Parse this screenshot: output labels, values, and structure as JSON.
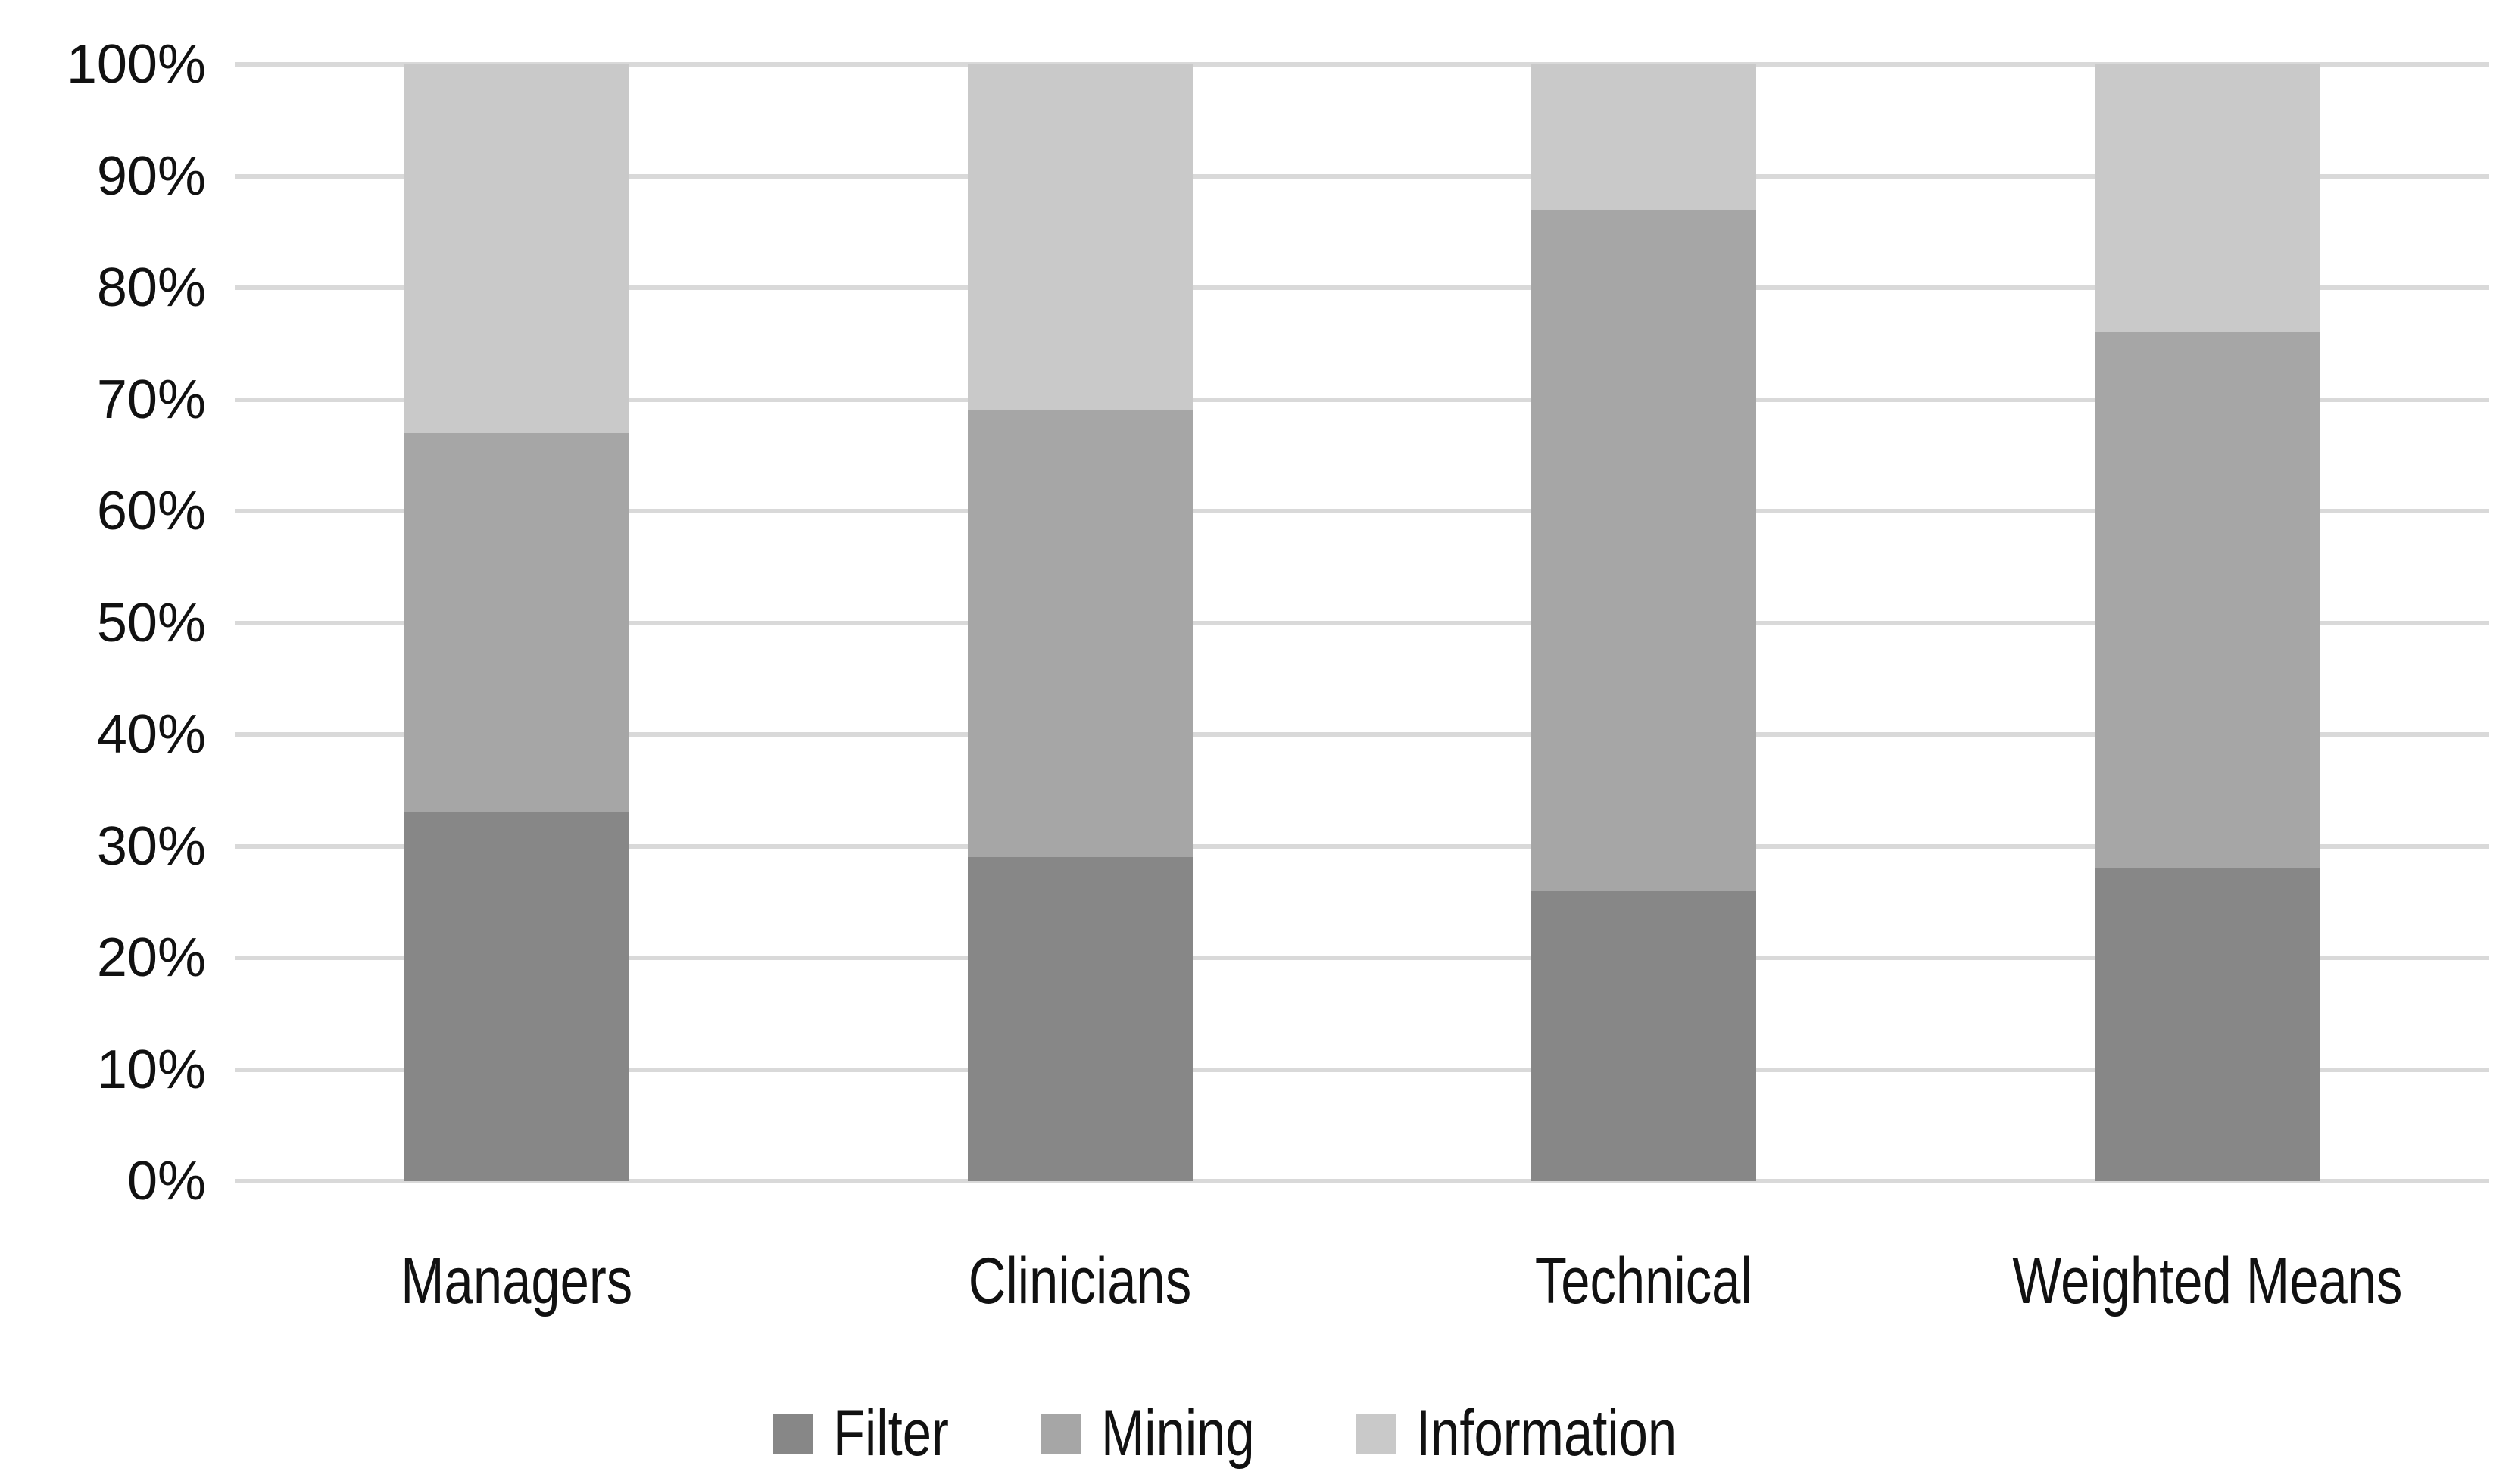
{
  "chart_data": {
    "type": "bar",
    "stacked": true,
    "percent_stacked": true,
    "title": "",
    "xlabel": "",
    "ylabel": "",
    "categories": [
      "Managers",
      "Clinicians",
      "Technical",
      "Weighted Means"
    ],
    "series": [
      {
        "name": "Filter",
        "color": "#878787",
        "values": [
          33,
          29,
          26,
          28
        ]
      },
      {
        "name": "Mining",
        "color": "#a6a6a6",
        "values": [
          34,
          40,
          61,
          48
        ]
      },
      {
        "name": "Information",
        "color": "#c9c9c9",
        "values": [
          33,
          31,
          13,
          24
        ]
      }
    ],
    "ylim": [
      0,
      100
    ],
    "ytick_labels": [
      "0%",
      "10%",
      "20%",
      "30%",
      "40%",
      "50%",
      "60%",
      "70%",
      "80%",
      "90%",
      "100%"
    ],
    "grid": "horizontal",
    "gridline_color": "#d9d9d9",
    "axis_line_color": "#d9d9d9",
    "background_color": "#ffffff",
    "text_color": "#111111",
    "legend_position": "bottom",
    "legend": [
      "Filter",
      "Mining",
      "Information"
    ]
  }
}
